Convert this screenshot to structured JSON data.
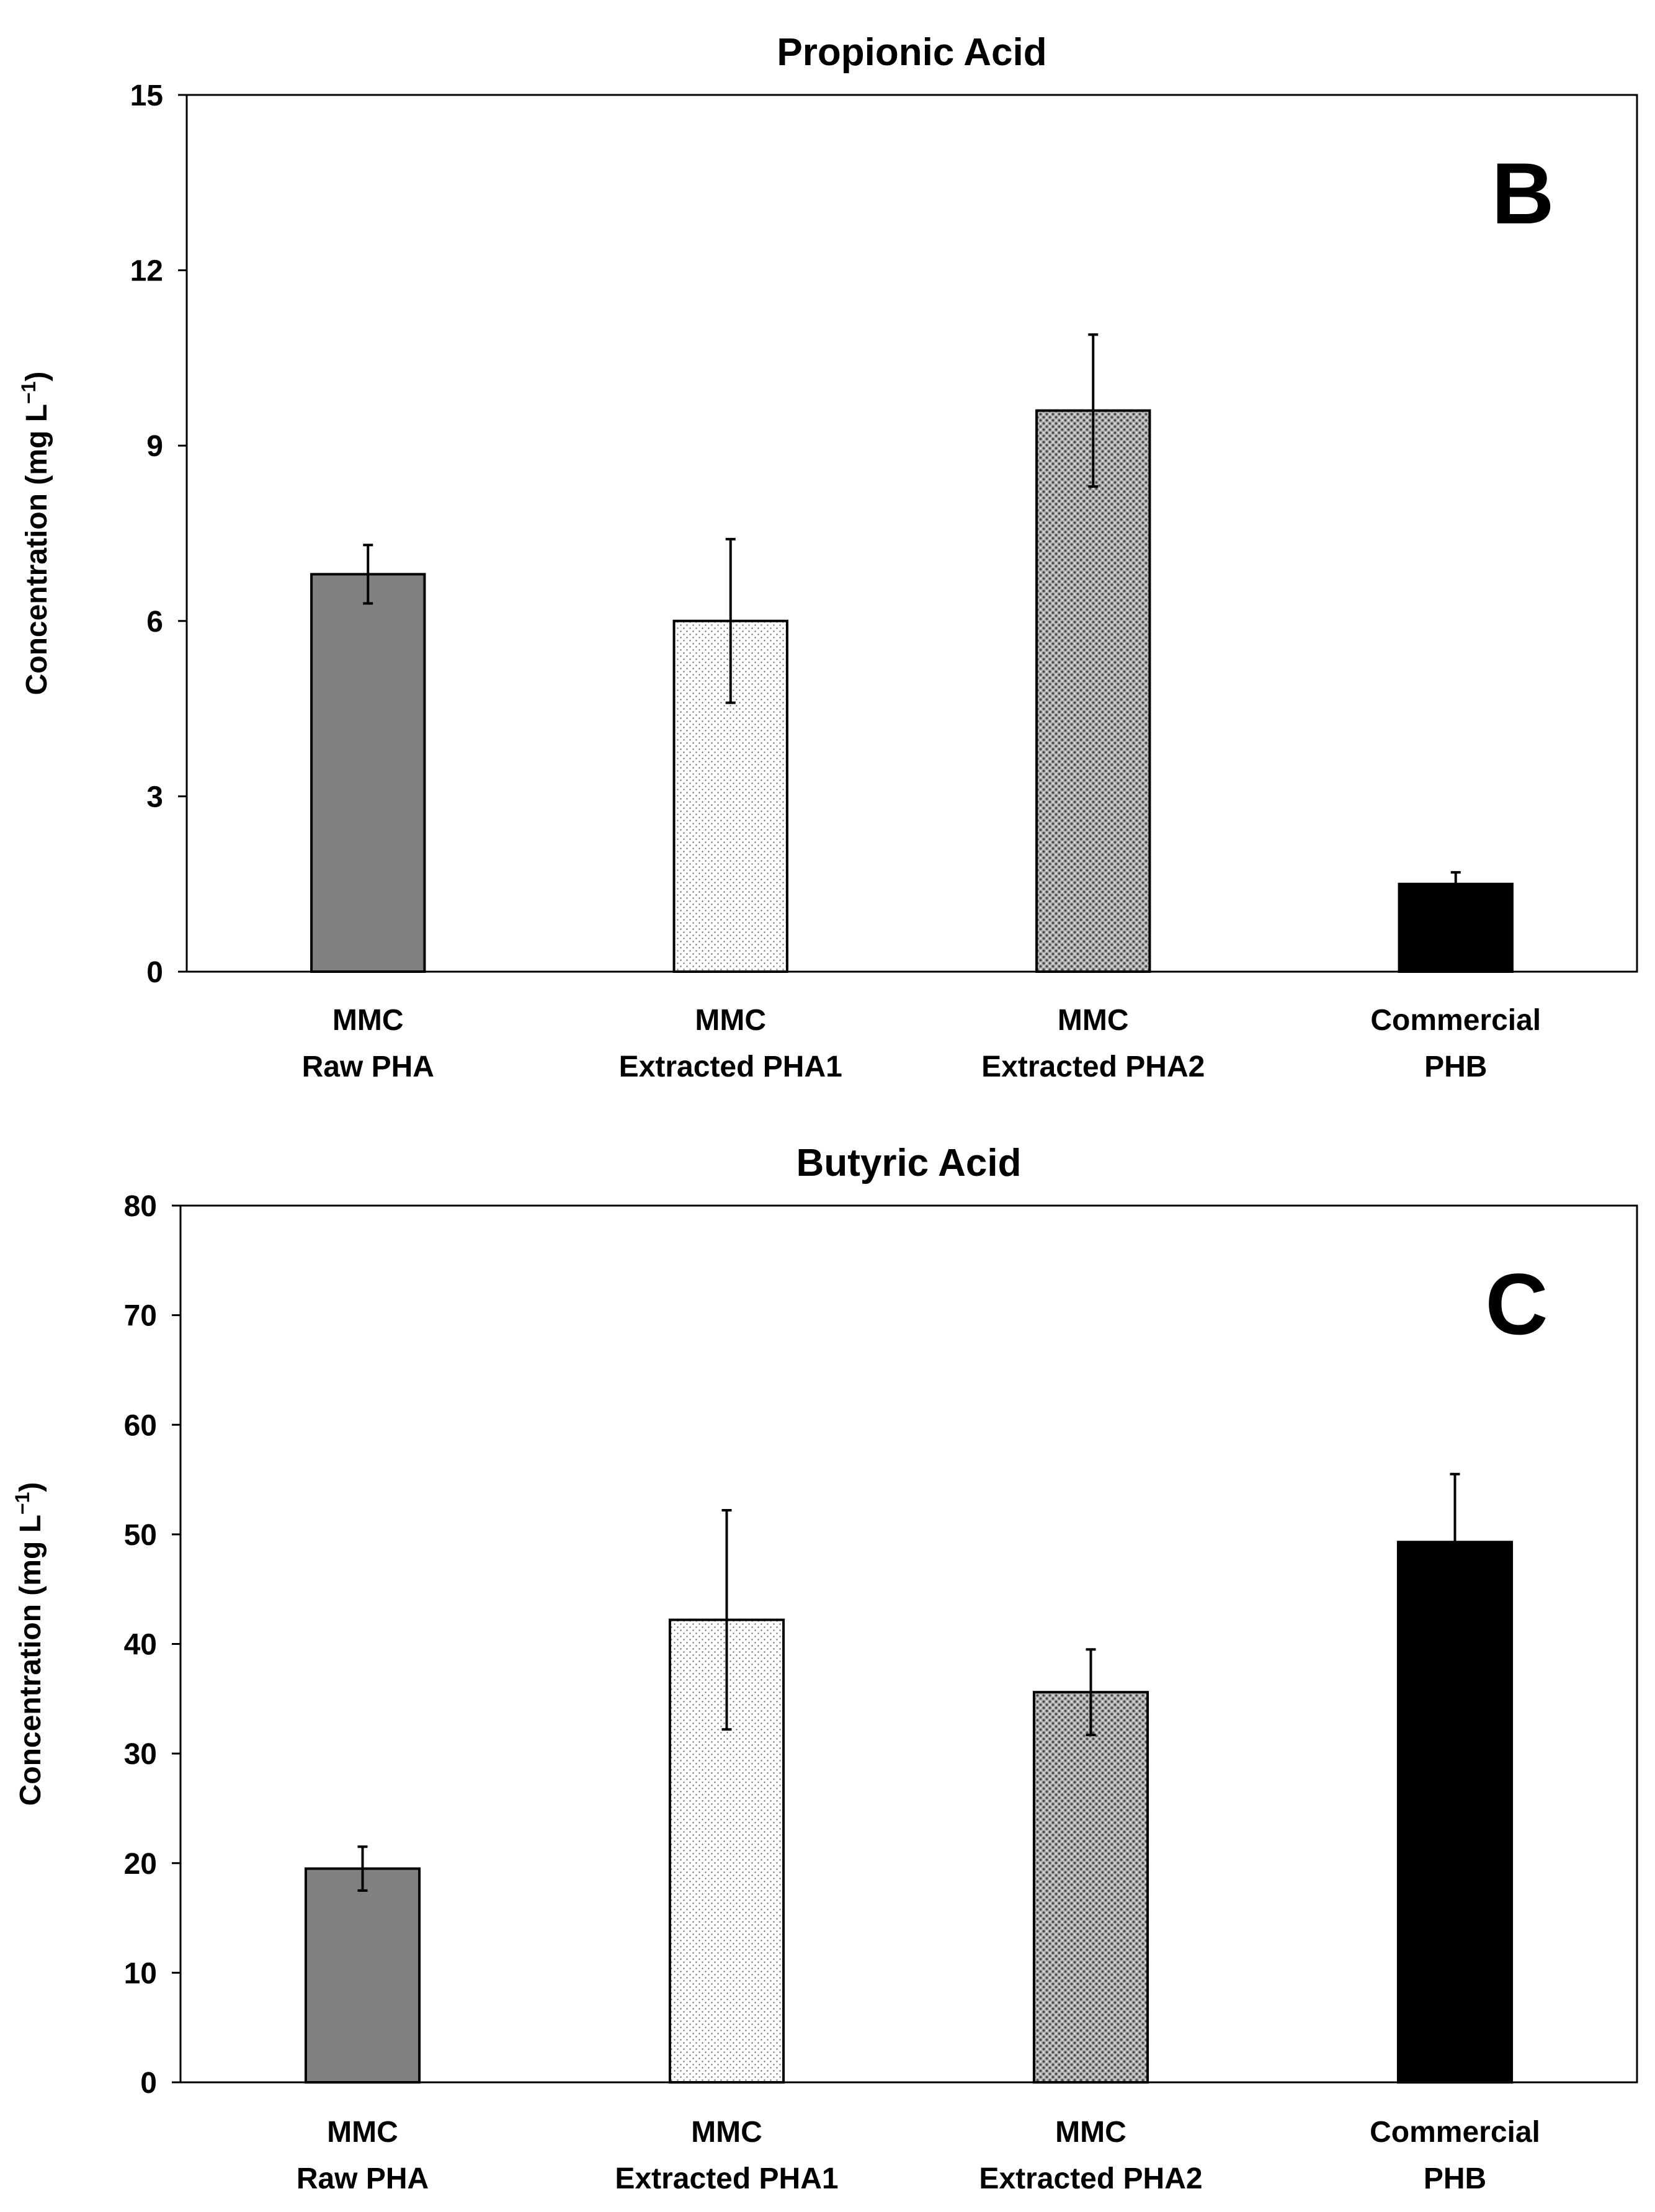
{
  "chart_data": [
    {
      "type": "bar",
      "title": "Propionic Acid",
      "panel_label": "B",
      "ylabel": "Concentration (mg L",
      "ylabel_superscript": "−1",
      "ylabel_close": ")",
      "ylim": [
        0,
        15
      ],
      "yticks": [
        "0",
        "3",
        "6",
        "9",
        "12",
        "15"
      ],
      "categories": [
        [
          "MMC",
          "Raw PHA"
        ],
        [
          "MMC",
          "Extracted PHA1"
        ],
        [
          "MMC",
          "Extracted PHA2"
        ],
        [
          "Commercial",
          "PHB"
        ]
      ],
      "values": [
        6.8,
        6.0,
        9.6,
        1.5
      ],
      "errors": [
        0.5,
        1.4,
        1.3,
        0.2
      ],
      "bar_fills": [
        "solid-gray",
        "light-dots",
        "dense-dots",
        "solid-black"
      ],
      "grid": false,
      "legend": "none"
    },
    {
      "type": "bar",
      "title": "Butyric Acid",
      "panel_label": "C",
      "ylabel": "Concentration (mg L",
      "ylabel_superscript": "−1",
      "ylabel_close": ")",
      "ylim": [
        0,
        80
      ],
      "yticks": [
        "0",
        "10",
        "20",
        "30",
        "40",
        "50",
        "60",
        "70",
        "80"
      ],
      "categories": [
        [
          "MMC",
          "Raw PHA"
        ],
        [
          "MMC",
          "Extracted PHA1"
        ],
        [
          "MMC",
          "Extracted PHA2"
        ],
        [
          "Commercial",
          "PHB"
        ]
      ],
      "values": [
        19.5,
        42.2,
        35.6,
        49.3
      ],
      "errors": [
        2.0,
        10.0,
        3.9,
        6.2
      ],
      "bar_fills": [
        "solid-gray",
        "light-dots",
        "dense-dots",
        "solid-black"
      ],
      "grid": false,
      "legend": "none"
    }
  ],
  "colors": {
    "axis": "#000000",
    "bar_gray": "#808080",
    "bar_black": "#000000",
    "pattern_light_bg": "#ffffff",
    "pattern_light_dot": "#6f6f6f",
    "pattern_dense_bg": "#b5b5b5",
    "pattern_dense_dot": "#4a4a4a"
  }
}
